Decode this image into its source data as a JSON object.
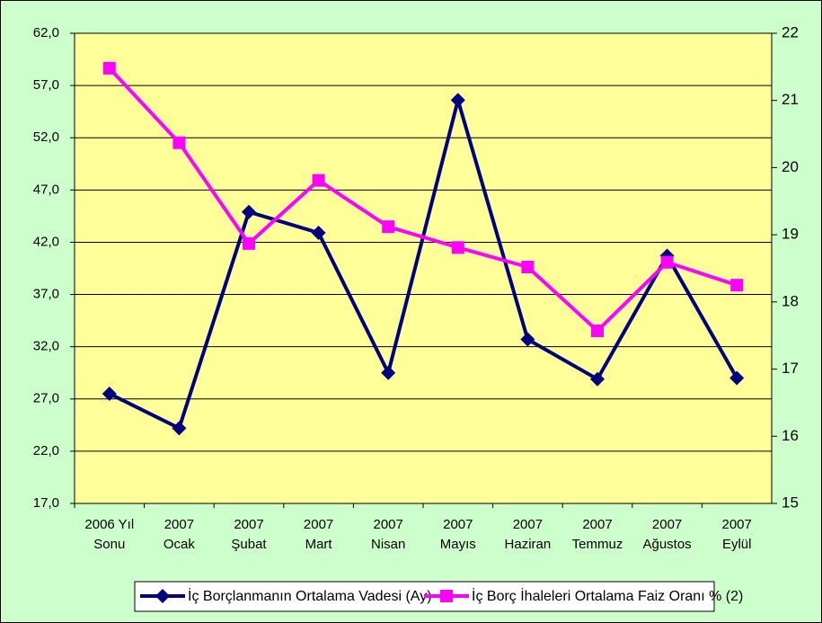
{
  "chart_data": {
    "type": "line",
    "categories": [
      [
        "2006 Yıl",
        "Sonu"
      ],
      [
        "2007",
        "Ocak"
      ],
      [
        "2007",
        "Şubat"
      ],
      [
        "2007",
        "Mart"
      ],
      [
        "2007",
        "Nisan"
      ],
      [
        "2007",
        "Mayıs"
      ],
      [
        "2007",
        "Haziran"
      ],
      [
        "2007",
        "Temmuz"
      ],
      [
        "2007",
        "Ağustos"
      ],
      [
        "2007",
        "Eylül"
      ]
    ],
    "series": [
      {
        "name": "İç Borçlanmanın Ortalama Vadesi (Ay)",
        "color": "#000080",
        "marker": "diamond",
        "values": [
          27.5,
          24.2,
          44.9,
          42.9,
          29.5,
          55.6,
          32.7,
          28.9,
          40.7,
          29.0
        ]
      },
      {
        "name": "İç Borç İhaleleri Ortalama Faiz Oranı % (2)",
        "color": "#ff00ff",
        "marker": "square",
        "axis": "y2",
        "values": [
          21.48,
          20.37,
          18.87,
          19.81,
          19.12,
          18.81,
          18.52,
          17.57,
          18.59,
          18.25
        ]
      }
    ],
    "ylim": [
      17,
      62
    ],
    "yticks": [
      {
        "value": 17,
        "label": "17,0"
      },
      {
        "value": 22,
        "label": "22,0"
      },
      {
        "value": 27,
        "label": "27,0"
      },
      {
        "value": 32,
        "label": "32,0"
      },
      {
        "value": 37,
        "label": "37,0"
      },
      {
        "value": 42,
        "label": "42,0"
      },
      {
        "value": 47,
        "label": "47,0"
      },
      {
        "value": 52,
        "label": "52,0"
      },
      {
        "value": 57,
        "label": "57,0"
      },
      {
        "value": 62,
        "label": "62,0"
      }
    ],
    "y2lim": [
      15,
      22
    ],
    "y2ticks": [
      15,
      16,
      17,
      18,
      19,
      20,
      21,
      22
    ],
    "grid": true,
    "legend": "bottom"
  }
}
